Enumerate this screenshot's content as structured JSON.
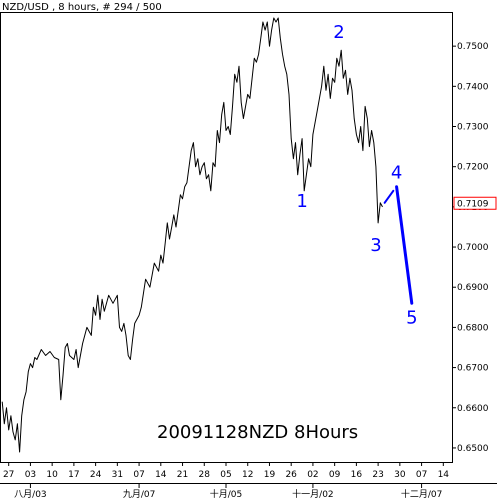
{
  "header": "NZD/USD , 8 hours, # 294 / 500",
  "watermark": "20091128NZD 8Hours",
  "colors": {
    "price_line": "#000000",
    "wave": "#0000ff",
    "last_price_box": "#ff0000",
    "grid": "#000000"
  },
  "chart_data": {
    "type": "line",
    "title": "NZD/USD , 8 hours, # 294 / 500",
    "y_ticks": [
      "0.7500",
      "0.7400",
      "0.7300",
      "0.7200",
      "0.7100",
      "0.7000",
      "0.6900",
      "0.6800",
      "0.6700",
      "0.6600",
      "0.6500"
    ],
    "y_tick_values": [
      0.75,
      0.74,
      0.73,
      0.72,
      0.71,
      0.7,
      0.69,
      0.68,
      0.67,
      0.66,
      0.65
    ],
    "ylim": [
      0.6465,
      0.7585
    ],
    "last_price": "0.7109",
    "last_price_value": 0.7109,
    "x_ticks": [
      "27",
      "03",
      "10",
      "17",
      "24",
      "31",
      "07",
      "14",
      "21",
      "28",
      "05",
      "12",
      "19",
      "26",
      "02",
      "09",
      "16",
      "23",
      "30",
      "07",
      "14"
    ],
    "x_tick_index": [
      0,
      1,
      2,
      3,
      4,
      5,
      6,
      7,
      8,
      9,
      10,
      11,
      12,
      13,
      14,
      15,
      16,
      17,
      18,
      19,
      20
    ],
    "x_month_labels": [
      {
        "label": "八月/03",
        "index": 1
      },
      {
        "label": "九月/07",
        "index": 6
      },
      {
        "label": "十月/05",
        "index": 10
      },
      {
        "label": "十一月/02",
        "index": 14
      },
      {
        "label": "十二月/07",
        "index": 19
      }
    ],
    "xlim": [
      -0.4,
      20.4
    ],
    "series": [
      {
        "values": [
          [
            -0.3,
            0.6615
          ],
          [
            -0.2,
            0.656
          ],
          [
            -0.1,
            0.66
          ],
          [
            0.0,
            0.6545
          ],
          [
            0.1,
            0.658
          ],
          [
            0.2,
            0.654
          ],
          [
            0.3,
            0.652
          ],
          [
            0.4,
            0.656
          ],
          [
            0.5,
            0.649
          ],
          [
            0.6,
            0.658
          ],
          [
            0.7,
            0.662
          ],
          [
            0.8,
            0.664
          ],
          [
            0.9,
            0.669
          ],
          [
            1.0,
            0.671
          ],
          [
            1.1,
            0.67
          ],
          [
            1.2,
            0.6725
          ],
          [
            1.3,
            0.672
          ],
          [
            1.5,
            0.6745
          ],
          [
            1.7,
            0.673
          ],
          [
            1.9,
            0.674
          ],
          [
            2.1,
            0.6725
          ],
          [
            2.3,
            0.672
          ],
          [
            2.4,
            0.662
          ],
          [
            2.5,
            0.668
          ],
          [
            2.6,
            0.675
          ],
          [
            2.7,
            0.676
          ],
          [
            2.8,
            0.673
          ],
          [
            3.0,
            0.672
          ],
          [
            3.1,
            0.6745
          ],
          [
            3.2,
            0.67
          ],
          [
            3.4,
            0.676
          ],
          [
            3.6,
            0.68
          ],
          [
            3.8,
            0.678
          ],
          [
            3.9,
            0.685
          ],
          [
            4.0,
            0.683
          ],
          [
            4.1,
            0.688
          ],
          [
            4.2,
            0.682
          ],
          [
            4.3,
            0.687
          ],
          [
            4.4,
            0.684
          ],
          [
            4.6,
            0.688
          ],
          [
            4.8,
            0.686
          ],
          [
            5.0,
            0.688
          ],
          [
            5.1,
            0.68
          ],
          [
            5.2,
            0.679
          ],
          [
            5.3,
            0.681
          ],
          [
            5.4,
            0.678
          ],
          [
            5.5,
            0.673
          ],
          [
            5.6,
            0.672
          ],
          [
            5.7,
            0.677
          ],
          [
            5.8,
            0.681
          ],
          [
            6.0,
            0.683
          ],
          [
            6.1,
            0.685
          ],
          [
            6.3,
            0.692
          ],
          [
            6.5,
            0.69
          ],
          [
            6.7,
            0.696
          ],
          [
            6.9,
            0.694
          ],
          [
            7.0,
            0.698
          ],
          [
            7.1,
            0.696
          ],
          [
            7.2,
            0.701
          ],
          [
            7.3,
            0.706
          ],
          [
            7.4,
            0.702
          ],
          [
            7.5,
            0.705
          ],
          [
            7.6,
            0.708
          ],
          [
            7.7,
            0.705
          ],
          [
            7.9,
            0.713
          ],
          [
            8.0,
            0.712
          ],
          [
            8.1,
            0.715
          ],
          [
            8.2,
            0.716
          ],
          [
            8.4,
            0.724
          ],
          [
            8.5,
            0.726
          ],
          [
            8.6,
            0.72
          ],
          [
            8.7,
            0.722
          ],
          [
            8.8,
            0.718
          ],
          [
            8.9,
            0.72
          ],
          [
            9.0,
            0.721
          ],
          [
            9.1,
            0.717
          ],
          [
            9.2,
            0.718
          ],
          [
            9.3,
            0.714
          ],
          [
            9.4,
            0.721
          ],
          [
            9.5,
            0.72
          ],
          [
            9.6,
            0.729
          ],
          [
            9.7,
            0.726
          ],
          [
            9.8,
            0.733
          ],
          [
            9.9,
            0.736
          ],
          [
            10.0,
            0.729
          ],
          [
            10.1,
            0.73
          ],
          [
            10.2,
            0.728
          ],
          [
            10.3,
            0.735
          ],
          [
            10.4,
            0.743
          ],
          [
            10.5,
            0.741
          ],
          [
            10.6,
            0.745
          ],
          [
            10.7,
            0.736
          ],
          [
            10.8,
            0.732
          ],
          [
            11.0,
            0.738
          ],
          [
            11.1,
            0.737
          ],
          [
            11.2,
            0.742
          ],
          [
            11.3,
            0.747
          ],
          [
            11.4,
            0.746
          ],
          [
            11.5,
            0.748
          ],
          [
            11.6,
            0.752
          ],
          [
            11.7,
            0.756
          ],
          [
            11.8,
            0.754
          ],
          [
            11.9,
            0.756
          ],
          [
            12.0,
            0.75
          ],
          [
            12.1,
            0.754
          ],
          [
            12.2,
            0.757
          ],
          [
            12.3,
            0.756
          ],
          [
            12.4,
            0.757
          ],
          [
            12.5,
            0.752
          ],
          [
            12.6,
            0.748
          ],
          [
            12.7,
            0.745
          ],
          [
            12.8,
            0.743
          ],
          [
            12.9,
            0.738
          ],
          [
            13.0,
            0.727
          ],
          [
            13.1,
            0.722
          ],
          [
            13.2,
            0.726
          ],
          [
            13.3,
            0.718
          ],
          [
            13.4,
            0.723
          ],
          [
            13.5,
            0.727
          ],
          [
            13.6,
            0.714
          ],
          [
            13.7,
            0.718
          ],
          [
            13.8,
            0.722
          ],
          [
            13.9,
            0.72
          ],
          [
            14.0,
            0.728
          ],
          [
            14.2,
            0.734
          ],
          [
            14.4,
            0.74
          ],
          [
            14.5,
            0.745
          ],
          [
            14.6,
            0.739
          ],
          [
            14.7,
            0.743
          ],
          [
            14.8,
            0.737
          ],
          [
            14.9,
            0.742
          ],
          [
            15.0,
            0.741
          ],
          [
            15.1,
            0.747
          ],
          [
            15.2,
            0.745
          ],
          [
            15.3,
            0.749
          ],
          [
            15.4,
            0.742
          ],
          [
            15.5,
            0.744
          ],
          [
            15.6,
            0.738
          ],
          [
            15.7,
            0.742
          ],
          [
            15.8,
            0.739
          ],
          [
            15.9,
            0.732
          ],
          [
            16.0,
            0.728
          ],
          [
            16.1,
            0.726
          ],
          [
            16.2,
            0.73
          ],
          [
            16.3,
            0.724
          ],
          [
            16.4,
            0.735
          ],
          [
            16.5,
            0.732
          ],
          [
            16.6,
            0.725
          ],
          [
            16.7,
            0.729
          ],
          [
            16.8,
            0.726
          ],
          [
            16.9,
            0.72
          ],
          [
            17.0,
            0.706
          ],
          [
            17.1,
            0.711
          ],
          [
            17.2,
            0.71
          ]
        ]
      }
    ],
    "wave_segments": [
      [
        [
          17.3,
          0.711
        ],
        [
          17.7,
          0.714
        ]
      ],
      [
        [
          17.85,
          0.715
        ],
        [
          18.55,
          0.686
        ]
      ]
    ],
    "wave_labels": [
      {
        "text": "1",
        "x": 13.5,
        "y": 0.71
      },
      {
        "text": "2",
        "x": 15.2,
        "y": 0.752
      },
      {
        "text": "3",
        "x": 16.9,
        "y": 0.699
      },
      {
        "text": "4",
        "x": 17.85,
        "y": 0.717
      },
      {
        "text": "5",
        "x": 18.55,
        "y": 0.681
      }
    ]
  }
}
